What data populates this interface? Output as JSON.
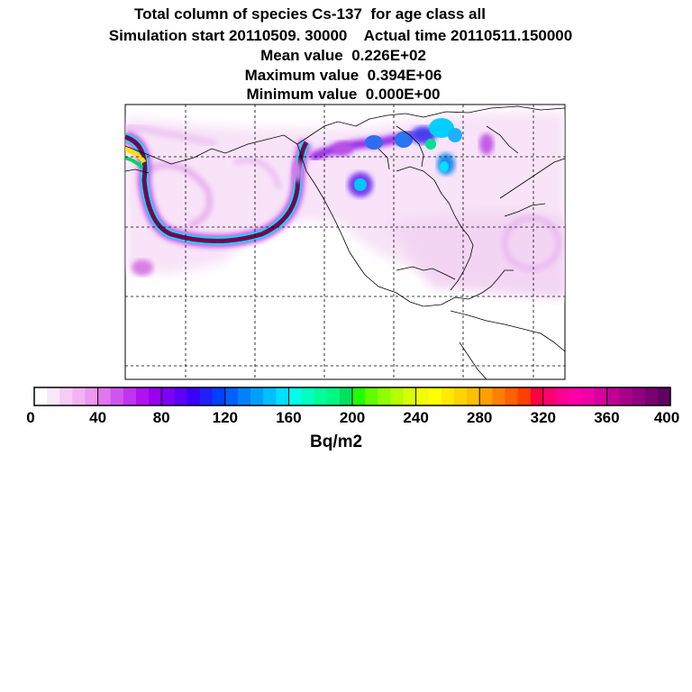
{
  "titles": {
    "line1": "Total column of species Cs-137  for age class all",
    "line2": "Simulation start 20110509. 30000    Actual time 20110511.150000",
    "line3": "Mean value  0.226E+02",
    "line4": "Maximum value  0.394E+06",
    "line5": "Minimum value  0.000E+00"
  },
  "colorbar": {
    "units": "Bq/m2",
    "ticks": [
      "0",
      "40",
      "80",
      "120",
      "160",
      "200",
      "240",
      "280",
      "320",
      "360",
      "400"
    ],
    "colors": [
      "#ffffff",
      "#fbe6fb",
      "#f6ccf6",
      "#f1b3f1",
      "#ea99ef",
      "#de77f0",
      "#d055f0",
      "#c033f0",
      "#b011f0",
      "#9a00f0",
      "#7f00f5",
      "#5c00f8",
      "#3a00f8",
      "#2020ff",
      "#0040ff",
      "#0060ff",
      "#0080ff",
      "#009fff",
      "#00bfff",
      "#00dfff",
      "#00ffea",
      "#00ffc0",
      "#00ff99",
      "#00f780",
      "#00e060",
      "#20ff00",
      "#60ff00",
      "#8fff00",
      "#b5ff00",
      "#d8ff00",
      "#f0ff00",
      "#ffff00",
      "#ffea00",
      "#ffd400",
      "#ffbf00",
      "#ffa000",
      "#ff8000",
      "#ff6000",
      "#ff4000",
      "#ff0040",
      "#ff0070",
      "#ff0090",
      "#ff00a8",
      "#f000a8",
      "#d8009e",
      "#c00094",
      "#a8008a",
      "#900080",
      "#780070",
      "#600060"
    ]
  }
}
